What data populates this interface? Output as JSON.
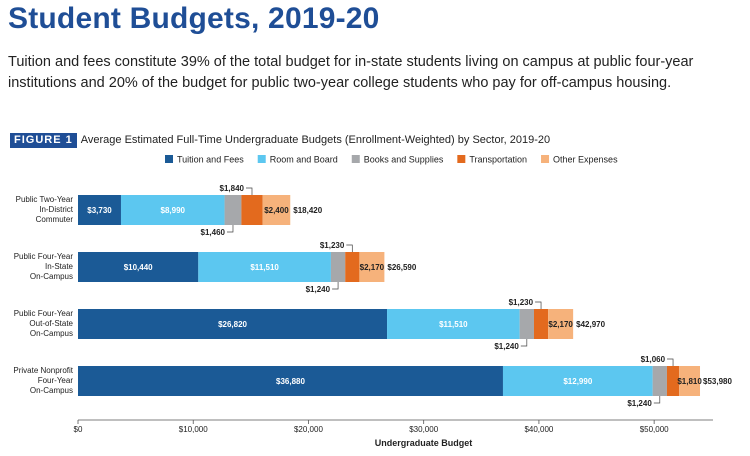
{
  "title": "Student Budgets, 2019-20",
  "subtitle": "Tuition and fees constitute 39% of the total budget for in-state students living on campus at public four-year institutions and 20% of the budget for public two-year college students who pay for off-campus housing.",
  "figure": {
    "label": "FIGURE 1",
    "caption": "Average Estimated Full-Time Undergraduate Budgets (Enrollment-Weighted) by Sector, 2019-20"
  },
  "chart_data": {
    "type": "bar",
    "orientation": "horizontal",
    "stacked": true,
    "xlabel": "Undergraduate Budget",
    "xlim": [
      0,
      55000
    ],
    "xticks": [
      0,
      10000,
      20000,
      30000,
      40000,
      50000
    ],
    "xtick_labels": [
      "$0",
      "$10,000",
      "$20,000",
      "$30,000",
      "$40,000",
      "$50,000"
    ],
    "legend_position": "top",
    "categories": [
      "Public Two-Year In-District Commuter",
      "Public Four-Year In-State On-Campus",
      "Public Four-Year Out-of-State On-Campus",
      "Private Nonprofit Four-Year On-Campus"
    ],
    "category_lines": [
      [
        "Public Two-Year",
        "In-District",
        "Commuter"
      ],
      [
        "Public Four-Year",
        "In-State",
        "On-Campus"
      ],
      [
        "Public Four-Year",
        "Out-of-State",
        "On-Campus"
      ],
      [
        "Private Nonprofit",
        "Four-Year",
        "On-Campus"
      ]
    ],
    "series": [
      {
        "name": "Tuition and Fees",
        "color": "#1b5a96",
        "values": [
          3730,
          10440,
          26820,
          36880
        ],
        "labels": [
          "$3,730",
          "$10,440",
          "$26,820",
          "$36,880"
        ]
      },
      {
        "name": "Room and Board",
        "color": "#5cc7f0",
        "values": [
          8990,
          11510,
          11510,
          12990
        ],
        "labels": [
          "$8,990",
          "$11,510",
          "$11,510",
          "$12,990"
        ]
      },
      {
        "name": "Books and Supplies",
        "color": "#a6a8ab",
        "values": [
          1460,
          1240,
          1240,
          1240
        ],
        "labels": [
          "$1,460",
          "$1,240",
          "$1,240",
          "$1,240"
        ]
      },
      {
        "name": "Transportation",
        "color": "#e36a1e",
        "values": [
          1840,
          1230,
          1230,
          1060
        ],
        "labels": [
          "$1,840",
          "$1,230",
          "$1,230",
          "$1,060"
        ]
      },
      {
        "name": "Other Expenses",
        "color": "#f6b27b",
        "values": [
          2400,
          2170,
          2170,
          1810
        ],
        "labels": [
          "$2,400",
          "$2,170",
          "$2,170",
          "$1,810"
        ]
      }
    ],
    "totals": [
      "$18,420",
      "$26,590",
      "$42,970",
      "$53,980"
    ]
  }
}
